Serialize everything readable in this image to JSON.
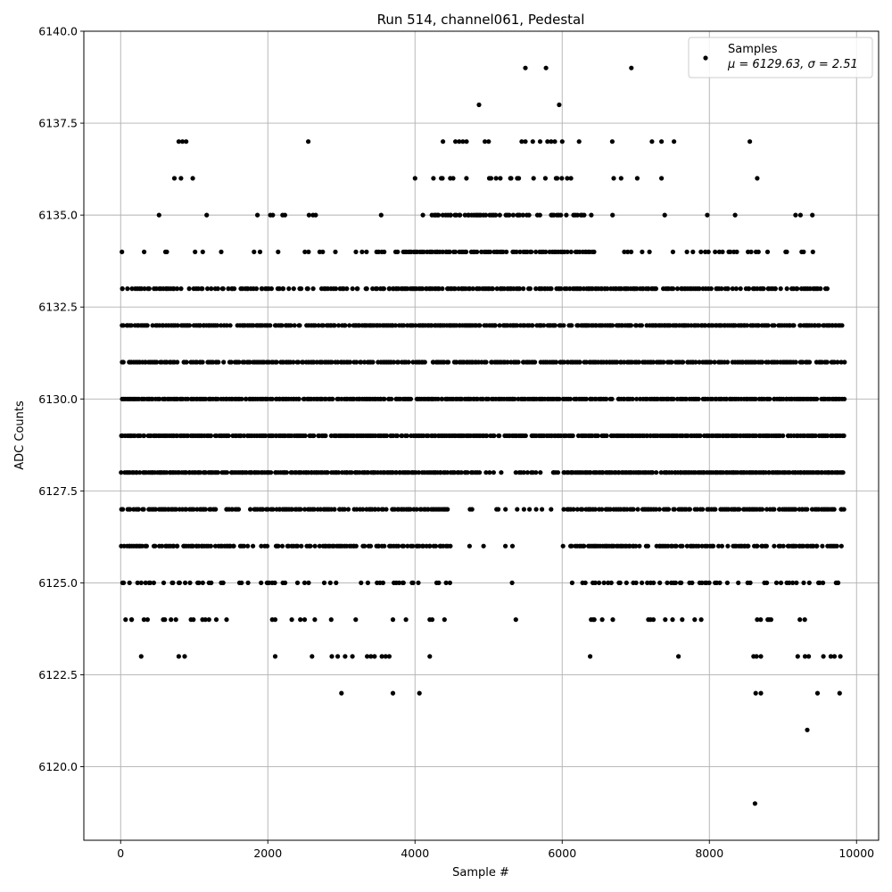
{
  "chart_data": {
    "type": "scatter",
    "title": "Run 514, channel061, Pedestal",
    "xlabel": "Sample #",
    "ylabel": "ADC Counts",
    "xlim": [
      -500,
      10300
    ],
    "ylim": [
      6118,
      6140
    ],
    "xticks": [
      0,
      2000,
      4000,
      6000,
      8000,
      10000
    ],
    "xtick_labels": [
      "0",
      "2000",
      "4000",
      "6000",
      "8000",
      "10000"
    ],
    "yticks": [
      6120.0,
      6122.5,
      6125.0,
      6127.5,
      6130.0,
      6132.5,
      6135.0,
      6137.5,
      6140.0
    ],
    "ytick_labels": [
      "6120.0",
      "6122.5",
      "6125.0",
      "6127.5",
      "6130.0",
      "6132.5",
      "6135.0",
      "6137.5",
      "6140.0"
    ],
    "grid": true,
    "legend_position": "top-right",
    "marker_color": "#000000",
    "series": [
      {
        "name": "Samples",
        "legend_stats": "μ = 6129.63, σ = 2.51",
        "band_density": [
          {
            "y": 6128,
            "ranges": [
              [
                0,
                4800,
                0.95
              ],
              [
                4800,
                6000,
                0.45
              ],
              [
                6000,
                9820,
                0.95
              ]
            ]
          },
          {
            "y": 6129,
            "ranges": [
              [
                0,
                9820,
                0.92
              ]
            ]
          },
          {
            "y": 6130,
            "ranges": [
              [
                0,
                9820,
                0.92
              ]
            ]
          },
          {
            "y": 6131,
            "ranges": [
              [
                0,
                9820,
                0.8
              ]
            ]
          },
          {
            "y": 6132,
            "ranges": [
              [
                0,
                9820,
                0.85
              ]
            ]
          },
          {
            "y": 6127,
            "ranges": [
              [
                0,
                4400,
                0.75
              ],
              [
                4400,
                6000,
                0.15
              ],
              [
                6000,
                9820,
                0.8
              ]
            ]
          },
          {
            "y": 6133,
            "ranges": [
              [
                0,
                3700,
                0.55
              ],
              [
                3700,
                7000,
                0.85
              ],
              [
                7000,
                9700,
                0.6
              ]
            ]
          },
          {
            "y": 6126,
            "ranges": [
              [
                0,
                4500,
                0.65
              ],
              [
                4500,
                6100,
                0.1
              ],
              [
                6100,
                9820,
                0.7
              ]
            ]
          },
          {
            "y": 6134,
            "ranges": [
              [
                0,
                3800,
                0.15
              ],
              [
                3800,
                6400,
                0.7
              ],
              [
                6400,
                9500,
                0.25
              ]
            ]
          },
          {
            "y": 6135,
            "ranges": [
              [
                0,
                4100,
                0.05
              ],
              [
                4100,
                6300,
                0.55
              ],
              [
                6300,
                9600,
                0.06
              ]
            ]
          },
          {
            "y": 6125,
            "ranges": [
              [
                0,
                4500,
                0.2
              ],
              [
                4500,
                6100,
                0.01
              ],
              [
                6100,
                9820,
                0.3
              ]
            ]
          },
          {
            "y": 6124,
            "ranges": [
              [
                0,
                4500,
                0.08
              ],
              [
                4500,
                6300,
                0.01
              ],
              [
                6300,
                9820,
                0.12
              ]
            ]
          },
          {
            "y": 6136,
            "ranges": [
              [
                4200,
                6100,
                0.2
              ]
            ]
          }
        ],
        "x": [
          730,
          820,
          980,
          2200,
          2560,
          2650,
          4000,
          4250,
          6700,
          6800,
          7020,
          7350,
          8650,
          790,
          840,
          890,
          2550,
          4380,
          4550,
          4600,
          4650,
          4700,
          4950,
          5000,
          5450,
          5500,
          5600,
          5700,
          5800,
          5850,
          5900,
          6000,
          6230,
          6680,
          7220,
          7350,
          7520,
          8550,
          4870,
          5960,
          5500,
          5780,
          6940,
          280,
          790,
          870,
          2100,
          2600,
          2870,
          2950,
          3050,
          3150,
          3350,
          3400,
          3450,
          3550,
          3600,
          3650,
          4200,
          6380,
          7580,
          8600,
          8640,
          8700,
          9200,
          9300,
          9350,
          9550,
          9650,
          9700,
          9780,
          3000,
          3700,
          4060,
          8630,
          8700,
          9470,
          9770,
          9330,
          8620,
          40,
          120,
          280,
          400,
          700,
          1200,
          2500,
          5320,
          7900,
          8100,
          150,
          600,
          1200,
          1300,
          2500,
          3700,
          4200,
          4400,
          5370,
          6420,
          7200,
          7400,
          7800
        ],
        "y": [
          6136,
          6136,
          6136,
          6135,
          6135,
          6135,
          6136,
          6136,
          6136,
          6136,
          6136,
          6136,
          6136,
          6137,
          6137,
          6137,
          6137,
          6137,
          6137,
          6137,
          6137,
          6137,
          6137,
          6137,
          6137,
          6137,
          6137,
          6137,
          6137,
          6137,
          6137,
          6137,
          6137,
          6137,
          6137,
          6137,
          6137,
          6137,
          6138,
          6138,
          6139,
          6139,
          6139,
          6123,
          6123,
          6123,
          6123,
          6123,
          6123,
          6123,
          6123,
          6123,
          6123,
          6123,
          6123,
          6123,
          6123,
          6123,
          6123,
          6123,
          6123,
          6123,
          6123,
          6123,
          6123,
          6123,
          6123,
          6123,
          6123,
          6123,
          6123,
          6122,
          6122,
          6122,
          6122,
          6122,
          6122,
          6122,
          6121,
          6119,
          6125,
          6125,
          6125,
          6125,
          6125,
          6125,
          6125,
          6125,
          6125,
          6125,
          6124,
          6124,
          6124,
          6124,
          6124,
          6124,
          6124,
          6124,
          6124,
          6124,
          6124,
          6124,
          6124
        ]
      }
    ]
  }
}
